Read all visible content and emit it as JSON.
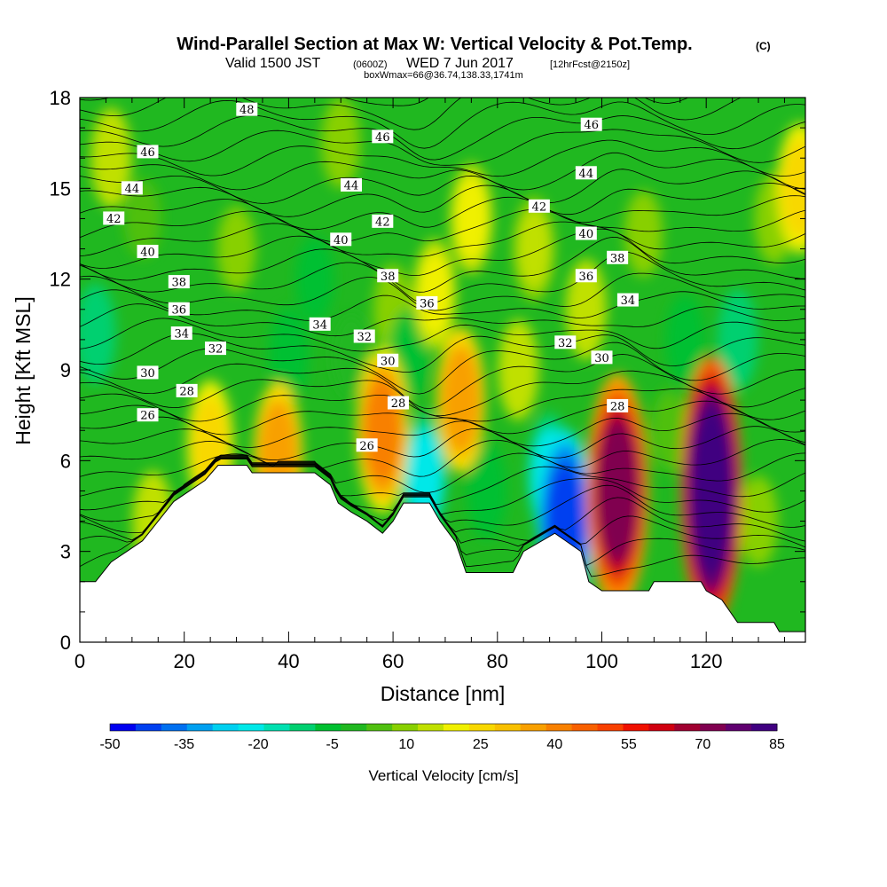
{
  "header": {
    "title": "Wind-Parallel Section at Max W: Vertical Velocity & Pot.Temp.",
    "copyright": "(C)",
    "valid_prefix": "Valid 1500 JST",
    "valid_utc": "(0600Z)",
    "valid_date": "WED 7 Jun 2017",
    "forecast": "[12hrFcst@2150z]",
    "box_info": "boxWmax=66@36.74,138.33,1741m"
  },
  "chart_data": {
    "type": "heatmap",
    "xlabel": "Distance [nm]",
    "ylabel": "Height [Kft MSL]",
    "xlim": [
      0,
      139
    ],
    "ylim": [
      0,
      18
    ],
    "x_ticks": [
      0,
      20,
      40,
      60,
      80,
      100,
      120
    ],
    "y_ticks": [
      0,
      3,
      6,
      9,
      12,
      15,
      18
    ],
    "colorbar": {
      "title": "Vertical Velocity [cm/s]",
      "min": -50,
      "max": 85,
      "step": 5,
      "labels": [
        "-50",
        "-35",
        "-20",
        "-5",
        "10",
        "25",
        "40",
        "55",
        "70",
        "85"
      ],
      "colors": [
        "#0000f0",
        "#0040f0",
        "#0070f0",
        "#00a0f0",
        "#00d0f0",
        "#00e8e8",
        "#00e0b0",
        "#00d070",
        "#00c030",
        "#20b820",
        "#50c010",
        "#88d000",
        "#c0e000",
        "#f0f000",
        "#f8d800",
        "#f8c000",
        "#f8a000",
        "#f88000",
        "#f86000",
        "#f84000",
        "#f01000",
        "#d00010",
        "#a00030",
        "#800050",
        "#600070",
        "#400080"
      ]
    },
    "vertical_velocity_cells": [
      {
        "x": 3,
        "y": 10.2,
        "w": -12
      },
      {
        "x": 6,
        "y": 16,
        "w": 12
      },
      {
        "x": 12,
        "y": 14,
        "w": 3
      },
      {
        "x": 14,
        "y": 4,
        "w": 12
      },
      {
        "x": 25,
        "y": 6.5,
        "w": 24
      },
      {
        "x": 30,
        "y": 13,
        "w": 6
      },
      {
        "x": 38,
        "y": 6.2,
        "w": 30
      },
      {
        "x": 40,
        "y": 9.5,
        "w": -10
      },
      {
        "x": 45,
        "y": 12,
        "w": -6
      },
      {
        "x": 50,
        "y": 16.5,
        "w": 8
      },
      {
        "x": 52,
        "y": 9.5,
        "w": -5
      },
      {
        "x": 58,
        "y": 7,
        "w": 38
      },
      {
        "x": 60,
        "y": 11,
        "w": 8
      },
      {
        "x": 63,
        "y": 9.5,
        "w": -8
      },
      {
        "x": 66,
        "y": 5.5,
        "w": -22
      },
      {
        "x": 68,
        "y": 11.5,
        "w": 16
      },
      {
        "x": 73,
        "y": 8,
        "w": 30
      },
      {
        "x": 75,
        "y": 14,
        "w": 16
      },
      {
        "x": 78,
        "y": 5,
        "w": -10
      },
      {
        "x": 84,
        "y": 9,
        "w": 12
      },
      {
        "x": 87,
        "y": 13,
        "w": 14
      },
      {
        "x": 90,
        "y": 5.5,
        "w": -22
      },
      {
        "x": 93,
        "y": 4,
        "w": -45
      },
      {
        "x": 97,
        "y": 11,
        "w": 12
      },
      {
        "x": 103,
        "y": 5,
        "w": 66
      },
      {
        "x": 108,
        "y": 13.5,
        "w": 6
      },
      {
        "x": 113,
        "y": 7,
        "w": 4
      },
      {
        "x": 116,
        "y": 10,
        "w": -8
      },
      {
        "x": 121,
        "y": 5,
        "w": 85
      },
      {
        "x": 126,
        "y": 10,
        "w": -12
      },
      {
        "x": 130,
        "y": 4,
        "w": 8
      },
      {
        "x": 133,
        "y": 14,
        "w": 8
      },
      {
        "x": 138,
        "y": 15,
        "w": 24
      }
    ],
    "terrain_kft": [
      [
        0,
        2.0
      ],
      [
        3,
        2.0
      ],
      [
        6,
        2.65
      ],
      [
        9,
        3.0
      ],
      [
        12,
        3.35
      ],
      [
        15,
        4.0
      ],
      [
        18,
        4.65
      ],
      [
        21,
        5.0
      ],
      [
        24,
        5.35
      ],
      [
        26.5,
        5.85
      ],
      [
        32,
        5.85
      ],
      [
        33,
        5.6
      ],
      [
        45,
        5.6
      ],
      [
        48,
        5.2
      ],
      [
        49.5,
        4.6
      ],
      [
        52,
        4.3
      ],
      [
        55,
        4.0
      ],
      [
        58,
        3.6
      ],
      [
        60,
        4.0
      ],
      [
        62,
        4.6
      ],
      [
        67,
        4.6
      ],
      [
        69,
        4.0
      ],
      [
        72,
        3.3
      ],
      [
        74,
        2.3
      ],
      [
        83,
        2.3
      ],
      [
        85,
        3.0
      ],
      [
        88,
        3.3
      ],
      [
        91,
        3.6
      ],
      [
        96,
        3.0
      ],
      [
        97.5,
        2.0
      ],
      [
        100,
        1.7
      ],
      [
        109,
        1.7
      ],
      [
        110,
        2.0
      ],
      [
        119,
        2.0
      ],
      [
        120,
        1.7
      ],
      [
        123,
        1.4
      ],
      [
        126,
        0.65
      ],
      [
        133,
        0.65
      ],
      [
        134,
        0.35
      ],
      [
        139,
        0.35
      ]
    ],
    "isentrope_labels": [
      {
        "text": "48",
        "x": 32,
        "y": 17.6
      },
      {
        "text": "46",
        "x": 13,
        "y": 16.2
      },
      {
        "text": "44",
        "x": 10,
        "y": 15.0
      },
      {
        "text": "42",
        "x": 6.5,
        "y": 14.0
      },
      {
        "text": "40",
        "x": 13,
        "y": 12.9
      },
      {
        "text": "38",
        "x": 19,
        "y": 11.9
      },
      {
        "text": "36",
        "x": 19,
        "y": 11.0
      },
      {
        "text": "34",
        "x": 19.5,
        "y": 10.2
      },
      {
        "text": "32",
        "x": 26,
        "y": 9.7
      },
      {
        "text": "30",
        "x": 13,
        "y": 8.9
      },
      {
        "text": "28",
        "x": 20.5,
        "y": 8.3
      },
      {
        "text": "26",
        "x": 13,
        "y": 7.5
      },
      {
        "text": "46",
        "x": 58,
        "y": 16.7
      },
      {
        "text": "44",
        "x": 52,
        "y": 15.1
      },
      {
        "text": "42",
        "x": 58,
        "y": 13.9
      },
      {
        "text": "40",
        "x": 50,
        "y": 13.3
      },
      {
        "text": "38",
        "x": 59,
        "y": 12.1
      },
      {
        "text": "36",
        "x": 66.5,
        "y": 11.2
      },
      {
        "text": "34",
        "x": 46,
        "y": 10.5
      },
      {
        "text": "32",
        "x": 54.5,
        "y": 10.1
      },
      {
        "text": "30",
        "x": 59,
        "y": 9.3
      },
      {
        "text": "28",
        "x": 61,
        "y": 7.9
      },
      {
        "text": "26",
        "x": 55,
        "y": 6.5
      },
      {
        "text": "46",
        "x": 98,
        "y": 17.1
      },
      {
        "text": "44",
        "x": 97,
        "y": 15.5
      },
      {
        "text": "42",
        "x": 88,
        "y": 14.4
      },
      {
        "text": "40",
        "x": 97,
        "y": 13.5
      },
      {
        "text": "38",
        "x": 103,
        "y": 12.7
      },
      {
        "text": "36",
        "x": 97,
        "y": 12.1
      },
      {
        "text": "34",
        "x": 105,
        "y": 11.3
      },
      {
        "text": "32",
        "x": 93,
        "y": 9.9
      },
      {
        "text": "30",
        "x": 100,
        "y": 9.4
      },
      {
        "text": "28",
        "x": 103,
        "y": 7.8
      }
    ]
  }
}
